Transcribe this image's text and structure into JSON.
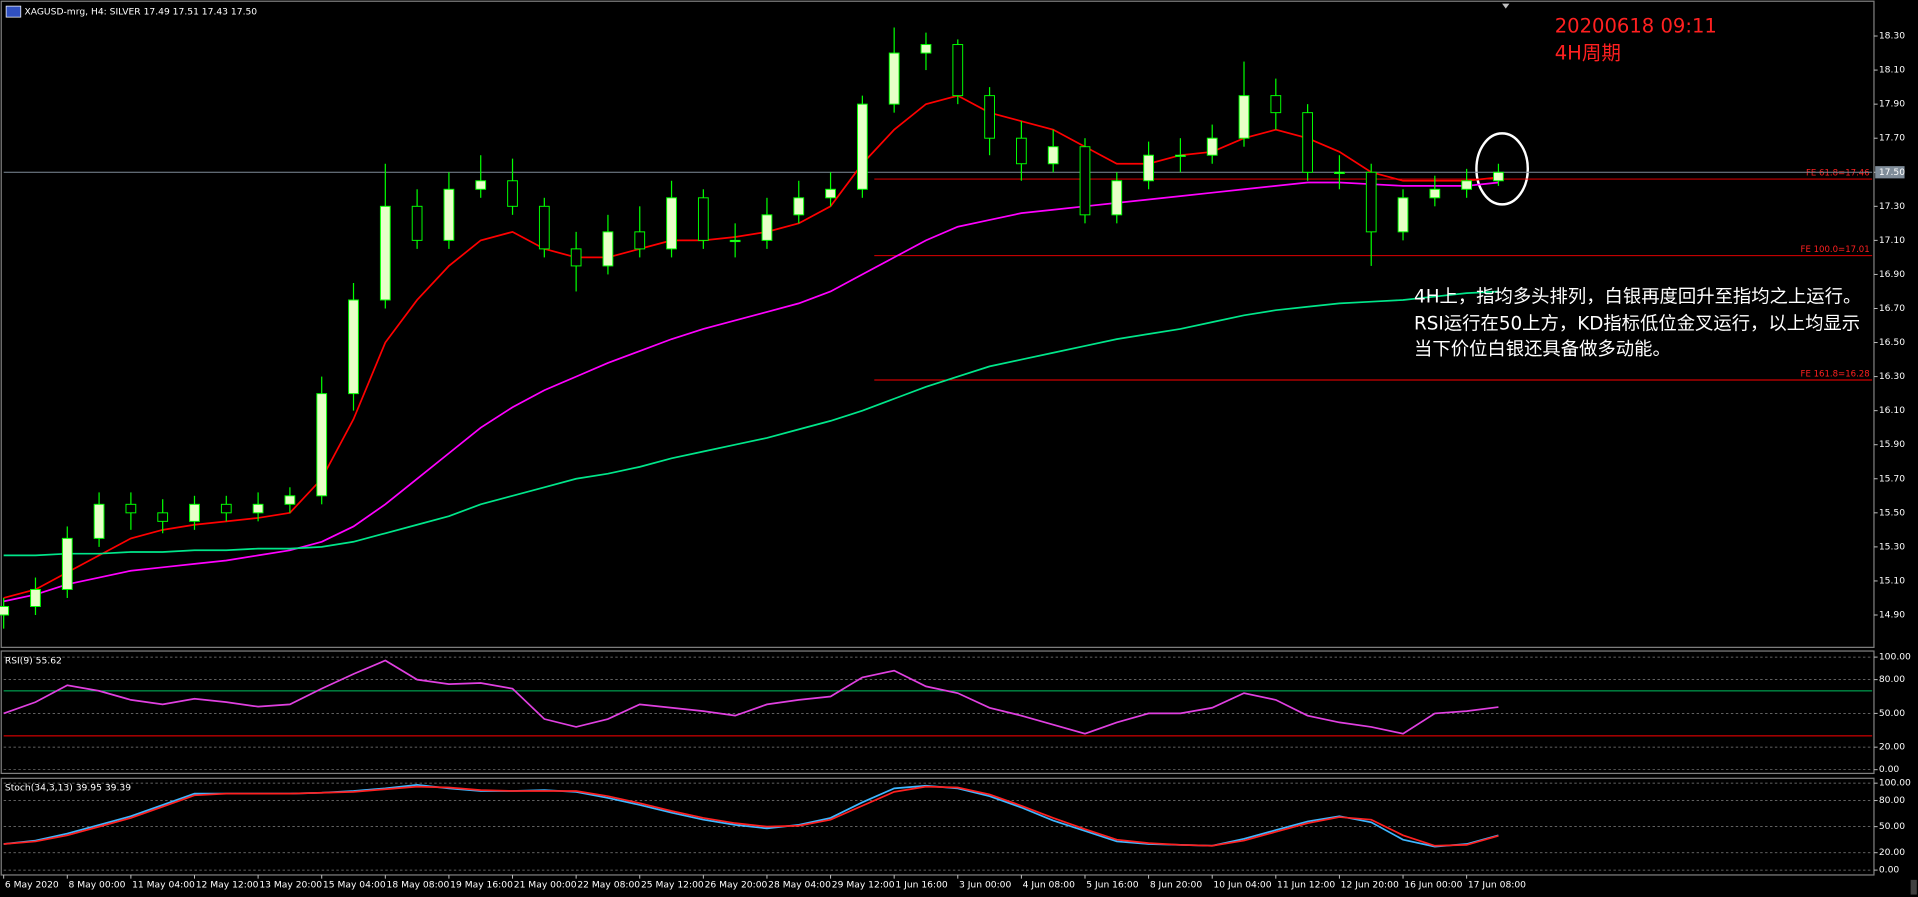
{
  "chart_data": [
    {
      "type": "candlestick",
      "title": "XAGUSD-mrg, H4:  SILVER  17.49 17.51 17.43 17.50",
      "x": [
        0,
        4,
        8,
        12,
        16,
        20,
        24,
        28,
        32,
        36,
        40,
        44,
        48,
        52,
        56,
        60,
        64,
        68,
        72,
        76,
        80,
        84,
        88,
        92,
        96,
        100,
        104,
        108,
        112,
        116,
        120,
        124,
        128,
        132,
        136,
        140,
        144,
        148,
        152,
        156,
        160,
        164,
        168,
        172,
        176,
        180,
        184,
        188
      ],
      "open": [
        14.9,
        14.95,
        15.05,
        15.35,
        15.55,
        15.5,
        15.45,
        15.55,
        15.5,
        15.55,
        15.6,
        16.2,
        16.75,
        17.3,
        17.1,
        17.4,
        17.45,
        17.3,
        17.05,
        16.95,
        17.15,
        17.05,
        17.35,
        17.1,
        17.1,
        17.25,
        17.35,
        17.4,
        17.9,
        18.2,
        18.25,
        17.95,
        17.7,
        17.55,
        17.65,
        17.25,
        17.45,
        17.6,
        17.6,
        17.7,
        17.95,
        17.85,
        17.5,
        17.5,
        17.15,
        17.35,
        17.4,
        17.45
      ],
      "high": [
        15.0,
        15.12,
        15.42,
        15.62,
        15.62,
        15.58,
        15.6,
        15.6,
        15.62,
        15.65,
        16.3,
        16.85,
        17.55,
        17.4,
        17.5,
        17.6,
        17.58,
        17.35,
        17.15,
        17.25,
        17.3,
        17.45,
        17.4,
        17.2,
        17.35,
        17.45,
        17.5,
        17.95,
        18.35,
        18.32,
        18.28,
        18.0,
        17.8,
        17.75,
        17.7,
        17.5,
        17.68,
        17.7,
        17.78,
        18.15,
        18.05,
        17.9,
        17.6,
        17.55,
        17.4,
        17.48,
        17.52,
        17.55
      ],
      "low": [
        14.82,
        14.9,
        15.0,
        15.3,
        15.4,
        15.38,
        15.4,
        15.45,
        15.45,
        15.5,
        15.55,
        16.1,
        16.7,
        17.05,
        17.05,
        17.35,
        17.25,
        17.0,
        16.8,
        16.9,
        17.0,
        17.0,
        17.05,
        17.0,
        17.05,
        17.2,
        17.3,
        17.35,
        17.85,
        18.1,
        17.9,
        17.6,
        17.45,
        17.5,
        17.2,
        17.2,
        17.4,
        17.5,
        17.55,
        17.65,
        17.75,
        17.45,
        17.4,
        16.95,
        17.1,
        17.3,
        17.35,
        17.42
      ],
      "close": [
        14.95,
        15.05,
        15.35,
        15.55,
        15.5,
        15.45,
        15.55,
        15.5,
        15.55,
        15.6,
        16.2,
        16.75,
        17.3,
        17.1,
        17.4,
        17.45,
        17.3,
        17.05,
        16.95,
        17.15,
        17.05,
        17.35,
        17.1,
        17.1,
        17.25,
        17.35,
        17.4,
        17.9,
        18.2,
        18.25,
        17.95,
        17.7,
        17.55,
        17.65,
        17.25,
        17.45,
        17.6,
        17.6,
        17.7,
        17.95,
        17.85,
        17.5,
        17.5,
        17.15,
        17.35,
        17.4,
        17.45,
        17.5
      ],
      "up_color": "#e8ffc8",
      "down_color": "#000000",
      "wick_color": "#00ff00",
      "series": [
        {
          "color": "#ff0000",
          "values": [
            15.0,
            15.05,
            15.15,
            15.25,
            15.35,
            15.4,
            15.43,
            15.45,
            15.47,
            15.5,
            15.7,
            16.05,
            16.5,
            16.75,
            16.95,
            17.1,
            17.15,
            17.05,
            17.0,
            17.0,
            17.05,
            17.1,
            17.1,
            17.12,
            17.15,
            17.2,
            17.3,
            17.55,
            17.75,
            17.9,
            17.95,
            17.85,
            17.8,
            17.75,
            17.65,
            17.55,
            17.55,
            17.6,
            17.62,
            17.7,
            17.75,
            17.7,
            17.62,
            17.5,
            17.45,
            17.45,
            17.45,
            17.47
          ]
        },
        {
          "color": "#ff00ff",
          "values": [
            14.98,
            15.02,
            15.08,
            15.12,
            15.16,
            15.18,
            15.2,
            15.22,
            15.25,
            15.28,
            15.33,
            15.42,
            15.55,
            15.7,
            15.85,
            16.0,
            16.12,
            16.22,
            16.3,
            16.38,
            16.45,
            16.52,
            16.58,
            16.63,
            16.68,
            16.73,
            16.8,
            16.9,
            17.0,
            17.1,
            17.18,
            17.22,
            17.26,
            17.28,
            17.3,
            17.32,
            17.34,
            17.36,
            17.38,
            17.4,
            17.42,
            17.44,
            17.44,
            17.43,
            17.42,
            17.42,
            17.42,
            17.44
          ]
        },
        {
          "color": "#00e68a",
          "values": [
            15.25,
            15.25,
            15.26,
            15.26,
            15.27,
            15.27,
            15.28,
            15.28,
            15.29,
            15.29,
            15.3,
            15.33,
            15.38,
            15.43,
            15.48,
            15.55,
            15.6,
            15.65,
            15.7,
            15.73,
            15.77,
            15.82,
            15.86,
            15.9,
            15.94,
            15.99,
            16.04,
            16.1,
            16.17,
            16.24,
            16.3,
            16.36,
            16.4,
            16.44,
            16.48,
            16.52,
            16.55,
            16.58,
            16.62,
            16.66,
            16.69,
            16.71,
            16.73,
            16.74,
            16.75,
            16.77,
            16.79,
            16.8
          ]
        }
      ],
      "xlim": [
        0,
        235
      ],
      "xticks": [
        {
          "value": 0,
          "label": "6 May 2020"
        },
        {
          "value": 8,
          "label": "8 May 00:00"
        },
        {
          "value": 16,
          "label": "11 May 04:00"
        },
        {
          "value": 24,
          "label": "12 May 12:00"
        },
        {
          "value": 32,
          "label": "13 May 20:00"
        },
        {
          "value": 40,
          "label": "15 May 04:00"
        },
        {
          "value": 48,
          "label": "18 May 08:00"
        },
        {
          "value": 56,
          "label": "19 May 16:00"
        },
        {
          "value": 64,
          "label": "21 May 00:00"
        },
        {
          "value": 72,
          "label": "22 May 08:00"
        },
        {
          "value": 80,
          "label": "25 May 12:00"
        },
        {
          "value": 88,
          "label": "26 May 20:00"
        },
        {
          "value": 96,
          "label": "28 May 04:00"
        },
        {
          "value": 104,
          "label": "29 May 12:00"
        },
        {
          "value": 112,
          "label": "1 Jun 16:00"
        },
        {
          "value": 120,
          "label": "3 Jun 00:00"
        },
        {
          "value": 128,
          "label": "4 Jun 08:00"
        },
        {
          "value": 136,
          "label": "5 Jun 16:00"
        },
        {
          "value": 144,
          "label": "8 Jun 20:00"
        },
        {
          "value": 152,
          "label": "10 Jun 04:00"
        },
        {
          "value": 160,
          "label": "11 Jun 12:00"
        },
        {
          "value": 168,
          "label": "12 Jun 20:00"
        },
        {
          "value": 176,
          "label": "16 Jun 00:00"
        },
        {
          "value": 184,
          "label": "17 Jun 08:00"
        }
      ],
      "ylim": [
        14.71,
        18.49
      ],
      "yticks": [
        {
          "value": 18.3,
          "label": "18.30"
        },
        {
          "value": 18.1,
          "label": "18.10"
        },
        {
          "value": 17.9,
          "label": "17.90"
        },
        {
          "value": 17.7,
          "label": "17.70"
        },
        {
          "value": 17.5,
          "label": "17.50"
        },
        {
          "value": 17.3,
          "label": "17.30"
        },
        {
          "value": 17.1,
          "label": "17.10"
        },
        {
          "value": 16.9,
          "label": "16.90"
        },
        {
          "value": 16.7,
          "label": "16.70"
        },
        {
          "value": 16.5,
          "label": "16.50"
        },
        {
          "value": 16.3,
          "label": "16.30"
        },
        {
          "value": 16.1,
          "label": "16.10"
        },
        {
          "value": 15.9,
          "label": "15.90"
        },
        {
          "value": 15.7,
          "label": "15.70"
        },
        {
          "value": 15.5,
          "label": "15.50"
        },
        {
          "value": 15.3,
          "label": "15.30"
        },
        {
          "value": 15.1,
          "label": "15.10"
        },
        {
          "value": 14.9,
          "label": "14.90"
        }
      ],
      "grid": false,
      "price_line": {
        "value": 17.5,
        "label": "17.50",
        "color": "#7f8c99"
      },
      "levels": [
        {
          "value": 17.46,
          "label": "FE 61.8=17.46",
          "color": "#ff0000"
        },
        {
          "value": 17.01,
          "label": "FE 100.0=17.01",
          "color": "#ff0000"
        },
        {
          "value": 16.28,
          "label": "FE 161.8=16.28",
          "color": "#ff0000"
        }
      ],
      "annotations": [
        "20200618 09:11",
        "4H周期",
        "4H上，指均多头排列，白银再度回升至指均之上运行。",
        "RSI运行在50上方，KD指标低位金叉运行，以上均显示",
        "当下价位白银还具备做多动能。"
      ]
    },
    {
      "type": "line",
      "title": "RSI(9) 55.62",
      "x": [
        0,
        4,
        8,
        12,
        16,
        20,
        24,
        28,
        32,
        36,
        40,
        44,
        48,
        52,
        56,
        60,
        64,
        68,
        72,
        76,
        80,
        84,
        88,
        92,
        96,
        100,
        104,
        108,
        112,
        116,
        120,
        124,
        128,
        132,
        136,
        140,
        144,
        148,
        152,
        156,
        160,
        164,
        168,
        172,
        176,
        180,
        184,
        188
      ],
      "series": [
        {
          "color": "#e040e0",
          "values": [
            50,
            60,
            75,
            70,
            62,
            58,
            63,
            60,
            56,
            58,
            72,
            85,
            97,
            80,
            76,
            77,
            72,
            45,
            38,
            45,
            58,
            55,
            52,
            48,
            58,
            62,
            65,
            82,
            88,
            74,
            68,
            55,
            48,
            40,
            32,
            42,
            50,
            50,
            55,
            68,
            62,
            48,
            42,
            38,
            32,
            50,
            52,
            55.62
          ]
        }
      ],
      "xlim": [
        0,
        235
      ],
      "ylim": [
        -3.3,
        105.4
      ],
      "yticks": [
        {
          "value": 100,
          "label": "100.00"
        },
        {
          "value": 80,
          "label": "80.00"
        },
        {
          "value": 50,
          "label": "50.00"
        },
        {
          "value": 20,
          "label": "20.00"
        },
        {
          "value": 0,
          "label": "0.00"
        }
      ],
      "grid": true,
      "levels": [
        {
          "value": 70,
          "color": "#00c060"
        },
        {
          "value": 30,
          "color": "#ff0000"
        }
      ]
    },
    {
      "type": "line",
      "title": "Stoch(34,3,13) 39.95 39.39",
      "x": [
        0,
        4,
        8,
        12,
        16,
        20,
        24,
        28,
        32,
        36,
        40,
        44,
        48,
        52,
        56,
        60,
        64,
        68,
        72,
        76,
        80,
        84,
        88,
        92,
        96,
        100,
        104,
        108,
        112,
        116,
        120,
        124,
        128,
        132,
        136,
        140,
        144,
        148,
        152,
        156,
        160,
        164,
        168,
        172,
        176,
        180,
        184,
        188
      ],
      "series": [
        {
          "color": "#3fb6ff",
          "values": [
            30,
            34,
            42,
            52,
            62,
            75,
            88,
            88,
            88,
            88,
            89,
            91,
            94,
            98,
            94,
            91,
            91,
            92,
            90,
            83,
            75,
            66,
            58,
            52,
            48,
            52,
            60,
            78,
            94,
            97,
            94,
            85,
            72,
            57,
            45,
            33,
            30,
            29,
            28,
            36,
            46,
            56,
            62,
            55,
            35,
            27,
            30,
            39.95
          ]
        },
        {
          "color": "#ff2020",
          "values": [
            30,
            33,
            40,
            50,
            60,
            73,
            86,
            88,
            88,
            88,
            89,
            90,
            93,
            96,
            95,
            92,
            91,
            91,
            91,
            85,
            77,
            68,
            60,
            54,
            50,
            51,
            58,
            74,
            90,
            96,
            95,
            87,
            74,
            60,
            47,
            35,
            31,
            29,
            28,
            34,
            44,
            54,
            61,
            58,
            40,
            28,
            29,
            39.39
          ]
        }
      ],
      "xlim": [
        0,
        235
      ],
      "ylim": [
        -5.6,
        105.6
      ],
      "yticks": [
        {
          "value": 100,
          "label": "100.00"
        },
        {
          "value": 80,
          "label": "80.00"
        },
        {
          "value": 50,
          "label": "50.00"
        },
        {
          "value": 20,
          "label": "20.00"
        },
        {
          "value": 0,
          "label": "0.00"
        }
      ],
      "grid": true
    }
  ]
}
